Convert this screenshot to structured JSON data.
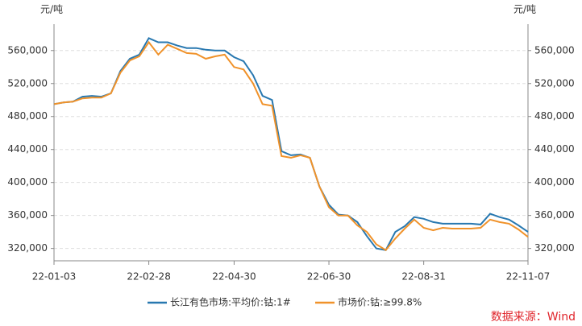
{
  "chart_data": {
    "type": "line",
    "y_unit_left": "元/吨",
    "y_unit_right": "元/吨",
    "source": "数据来源：Wind",
    "categories": [
      "22-01-03",
      null,
      null,
      null,
      null,
      null,
      null,
      null,
      null,
      null,
      "22-02-28",
      null,
      null,
      null,
      null,
      null,
      null,
      null,
      null,
      "22-04-30",
      null,
      null,
      null,
      null,
      null,
      null,
      null,
      null,
      null,
      "22-06-30",
      null,
      null,
      null,
      null,
      null,
      null,
      null,
      null,
      null,
      "22-08-31",
      null,
      null,
      null,
      null,
      null,
      null,
      null,
      null,
      null,
      null,
      "22-11-07"
    ],
    "series": [
      {
        "name": "长江有色市场:平均价:钴:1#",
        "color": "#2878b0",
        "values": [
          495000,
          497000,
          498000,
          504000,
          505000,
          504000,
          508000,
          535000,
          550000,
          555000,
          575000,
          570000,
          570000,
          566000,
          563000,
          563000,
          561000,
          560000,
          560000,
          552000,
          547000,
          530000,
          505000,
          500000,
          438000,
          433000,
          434000,
          430000,
          395000,
          373000,
          361000,
          360000,
          352000,
          335000,
          320000,
          318000,
          340000,
          347000,
          358000,
          356000,
          352000,
          350000,
          350000,
          350000,
          350000,
          349000,
          362000,
          358000,
          355000,
          348000,
          340000
        ]
      },
      {
        "name": "市场价:钴:≥99.8%",
        "color": "#f0922a",
        "values": [
          495000,
          497000,
          498000,
          502000,
          503000,
          503000,
          508000,
          533000,
          548000,
          553000,
          570000,
          555000,
          567000,
          562000,
          557000,
          556000,
          550000,
          553000,
          555000,
          540000,
          537000,
          520000,
          495000,
          493000,
          432000,
          430000,
          433000,
          430000,
          395000,
          370000,
          360000,
          360000,
          348000,
          340000,
          325000,
          318000,
          332000,
          344000,
          355000,
          345000,
          342000,
          345000,
          344000,
          344000,
          344000,
          345000,
          355000,
          352000,
          350000,
          343000,
          334000
        ]
      }
    ],
    "ylim": [
      305000,
      592000
    ],
    "yticks": [
      {
        "value": 320000,
        "label": "320,000"
      },
      {
        "value": 360000,
        "label": "360,000"
      },
      {
        "value": 400000,
        "label": "400,000"
      },
      {
        "value": 440000,
        "label": "440,000"
      },
      {
        "value": 480000,
        "label": "480,000"
      },
      {
        "value": 520000,
        "label": "520,000"
      },
      {
        "value": 560000,
        "label": "560,000"
      }
    ],
    "y2lim": [
      305000,
      592000
    ],
    "y2ticks": [
      {
        "value": 320000,
        "label": "320,000"
      },
      {
        "value": 360000,
        "label": "360,000"
      },
      {
        "value": 400000,
        "label": "400,000"
      },
      {
        "value": 440000,
        "label": "440,000"
      },
      {
        "value": 480000,
        "label": "480,000"
      },
      {
        "value": 520000,
        "label": "520,000"
      },
      {
        "value": 560000,
        "label": "560,000"
      }
    ],
    "grid": true,
    "legend": "bottom"
  }
}
